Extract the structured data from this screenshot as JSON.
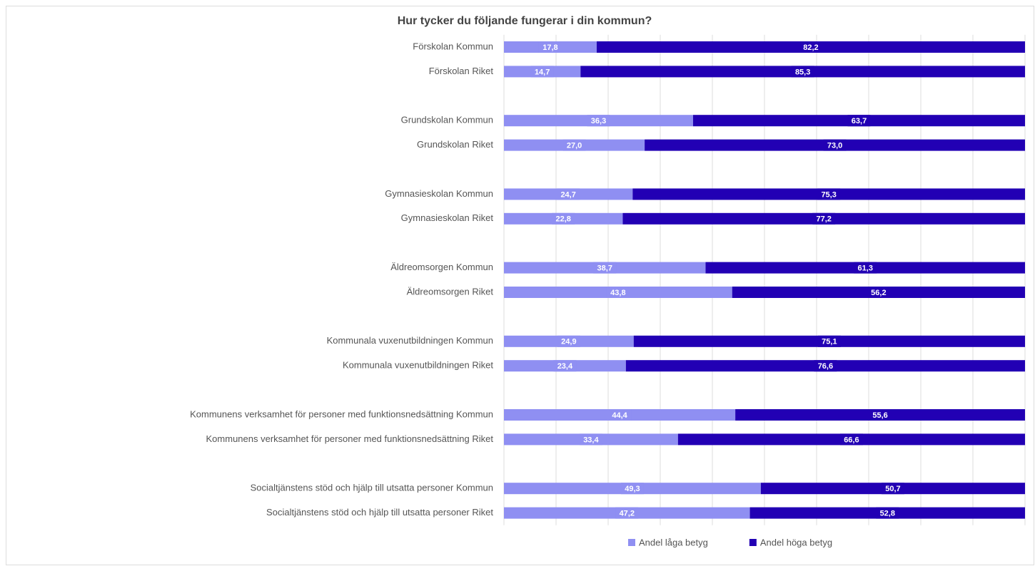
{
  "chart_data": {
    "type": "stacked-bar-horizontal",
    "title": "Hur tycker du följande fungerar i din kommun?",
    "categories": [
      "Förskolan Kommun",
      "Förskolan Riket",
      null,
      "Grundskolan Kommun",
      "Grundskolan Riket",
      null,
      "Gymnasieskolan Kommun",
      "Gymnasieskolan Riket",
      null,
      "Äldreomsorgen Kommun",
      "Äldreomsorgen Riket",
      null,
      "Kommunala vuxenutbildningen Kommun",
      "Kommunala vuxenutbildningen Riket",
      null,
      "Kommunens verksamhet för personer med funktionsnedsättning Kommun",
      "Kommunens verksamhet för personer med funktionsnedsättning Riket",
      null,
      "Socialtjänstens stöd och hjälp till utsatta personer Kommun",
      "Socialtjänstens stöd och hjälp till utsatta personer Riket"
    ],
    "series": [
      {
        "name": "Andel låga betyg",
        "color": "#8f8ff2",
        "values": [
          17.8,
          14.7,
          null,
          36.3,
          27.0,
          null,
          24.7,
          22.8,
          null,
          38.7,
          43.8,
          null,
          24.9,
          23.4,
          null,
          44.4,
          33.4,
          null,
          49.3,
          47.2
        ],
        "value_labels": [
          "17,8",
          "14,7",
          null,
          "36,3",
          "27,0",
          null,
          "24,7",
          "22,8",
          null,
          "38,7",
          "43,8",
          null,
          "24,9",
          "23,4",
          null,
          "44,4",
          "33,4",
          null,
          "49,3",
          "47,2"
        ]
      },
      {
        "name": "Andel höga betyg",
        "color": "#2200b4",
        "values": [
          82.2,
          85.3,
          null,
          63.7,
          73.0,
          null,
          75.3,
          77.2,
          null,
          61.3,
          56.2,
          null,
          75.1,
          76.6,
          null,
          55.6,
          66.6,
          null,
          50.7,
          52.8
        ],
        "value_labels": [
          "82,2",
          "85,3",
          null,
          "63,7",
          "73,0",
          null,
          "75,3",
          "77,2",
          null,
          "61,3",
          "56,2",
          null,
          "75,1",
          "76,6",
          null,
          "55,6",
          "66,6",
          null,
          "50,7",
          "52,8"
        ]
      }
    ],
    "xlim": [
      0,
      100
    ],
    "xticks": [
      0,
      10,
      20,
      30,
      40,
      50,
      60,
      70,
      80,
      90,
      100
    ],
    "grid": true,
    "legend": "bottom"
  }
}
